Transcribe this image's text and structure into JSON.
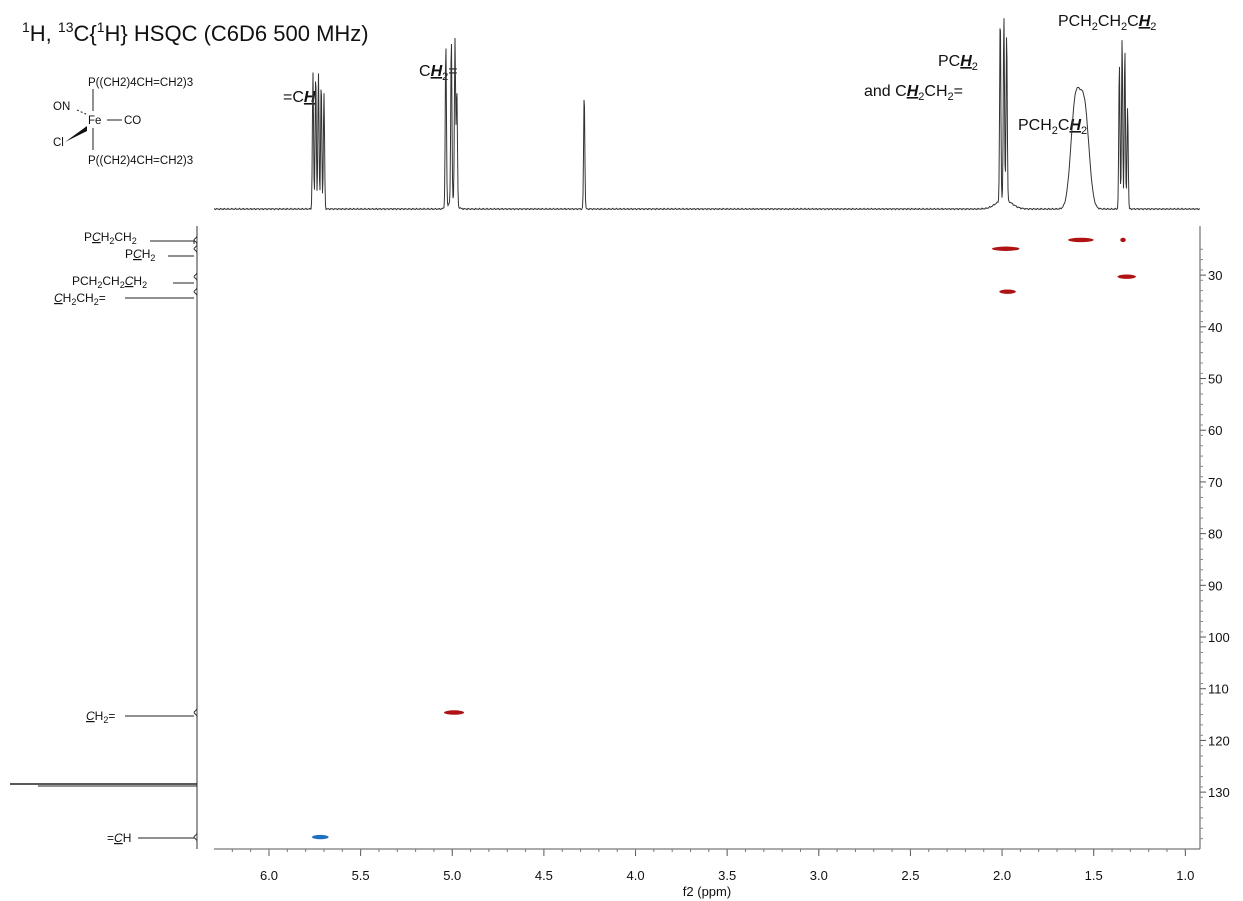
{
  "title": {
    "part1": "H, ",
    "sup1": "1",
    "sup2": "13",
    "sup3": "1",
    "c": "C{",
    "h": "H} HSQC (C6D6 500 MHz)"
  },
  "structure": {
    "top_ligand": "P((CH2)4CH=CH2)3",
    "bottom_ligand": "P((CH2)4CH=CH2)3",
    "no": "ON",
    "fe": "Fe",
    "co": "CO",
    "cl": "Cl"
  },
  "peak_labels": {
    "eq_ch": {
      "pre": "=C",
      "em": "H"
    },
    "ch2_eq": {
      "pre": "C",
      "em": "H",
      "sub": "2",
      "post": "="
    },
    "pch2": {
      "pre": "PC",
      "em": "H",
      "sub": "2"
    },
    "and_ch2ch2": {
      "pre": "and C",
      "em": "H",
      "sub1": "2",
      "mid": "CH",
      "sub2": "2",
      "post": "="
    },
    "pch2ch2": {
      "pre": "PCH",
      "sub1": "2",
      "mid": "C",
      "em": "H",
      "sub2": "2"
    },
    "pch2ch2ch2": {
      "pre": "PCH",
      "sub1": "2",
      "mid1": "CH",
      "sub2": "2",
      "mid2": "C",
      "em": "H",
      "sub3": "2"
    }
  },
  "carbon_labels": {
    "pch2ch2": {
      "p": "P",
      "c": "C",
      "rest": "H",
      "sub": "2",
      "tail": "CH",
      "sub2": "2"
    },
    "pch2": {
      "p": "P",
      "c": "C",
      "rest": "H",
      "sub": "2"
    },
    "pch2ch2ch2": {
      "pre": "PCH",
      "sub1": "2",
      "mid": "CH",
      "sub2": "2",
      "c": "C",
      "rest": "H",
      "sub3": "2"
    },
    "ch2ch2": {
      "c": "C",
      "rest": "H",
      "sub1": "2",
      "mid": "CH",
      "sub2": "2",
      "post": "="
    },
    "ch2_eq": {
      "c": "C",
      "rest": "H",
      "sub": "2",
      "post": "="
    },
    "eq_ch": {
      "pre": "=",
      "c": "C",
      "rest": "H"
    }
  },
  "colors": {
    "positive": "#b01313",
    "negative": "#1f6fc0",
    "trace": "#333333",
    "axis": "#555555"
  },
  "chart_data": {
    "type": "heatmap",
    "subtype": "2D NMR HSQC",
    "xlabel": "f2 (ppm)",
    "ylabel": "",
    "xlim": [
      6.3,
      0.92
    ],
    "ylim": [
      20.5,
      141
    ],
    "x_reversed": true,
    "x_ticks": [
      6.0,
      5.5,
      5.0,
      4.5,
      4.0,
      3.5,
      3.0,
      2.5,
      2.0,
      1.5,
      1.0
    ],
    "x_tick_labels": [
      "6.0",
      "5.5",
      "5.0",
      "4.5",
      "4.0",
      "3.5",
      "3.0",
      "2.5",
      "2.0",
      "1.5",
      "1.0"
    ],
    "y_ticks": [
      30,
      40,
      50,
      60,
      70,
      80,
      90,
      100,
      110,
      120,
      130
    ],
    "y_tick_labels": [
      "30",
      "40",
      "50",
      "60",
      "70",
      "80",
      "90",
      "100",
      "110",
      "120",
      "130"
    ],
    "cross_peaks": [
      {
        "f2": 1.57,
        "f1": 23.2,
        "f2_width": 0.14,
        "sign": "positive"
      },
      {
        "f2": 1.34,
        "f1": 23.2,
        "f2_width": 0.03,
        "sign": "positive"
      },
      {
        "f2": 1.98,
        "f1": 24.9,
        "f2_width": 0.15,
        "sign": "positive"
      },
      {
        "f2": 1.32,
        "f1": 30.3,
        "f2_width": 0.1,
        "sign": "positive"
      },
      {
        "f2": 1.97,
        "f1": 33.2,
        "f2_width": 0.09,
        "sign": "positive"
      },
      {
        "f2": 4.99,
        "f1": 114.6,
        "f2_width": 0.11,
        "sign": "positive"
      },
      {
        "f2": 5.72,
        "f1": 138.7,
        "f2_width": 0.09,
        "sign": "negative"
      }
    ],
    "f1_projection_peaks": [
      23.2,
      24.9,
      30.3,
      33.2,
      114.6,
      128.5,
      138.7
    ],
    "f2_projection_peaks": [
      {
        "ppm": 5.76,
        "height": 0.73
      },
      {
        "ppm": 5.745,
        "height": 0.73
      },
      {
        "ppm": 5.73,
        "height": 0.73
      },
      {
        "ppm": 5.715,
        "height": 0.68
      },
      {
        "ppm": 5.7,
        "height": 0.62
      },
      {
        "ppm": 5.035,
        "height": 0.88
      },
      {
        "ppm": 5.005,
        "height": 0.88
      },
      {
        "ppm": 4.985,
        "height": 0.88
      },
      {
        "ppm": 4.975,
        "height": 0.62
      },
      {
        "ppm": 4.28,
        "height": 0.62
      },
      {
        "ppm": 2.01,
        "height": 1.0
      },
      {
        "ppm": 1.99,
        "height": 1.0
      },
      {
        "ppm": 1.975,
        "height": 0.9
      },
      {
        "ppm": 1.6,
        "height": 0.55
      },
      {
        "ppm": 1.55,
        "height": 0.52
      },
      {
        "ppm": 1.36,
        "height": 0.78
      },
      {
        "ppm": 1.345,
        "height": 0.92
      },
      {
        "ppm": 1.33,
        "height": 0.86
      },
      {
        "ppm": 1.315,
        "height": 0.55
      }
    ]
  }
}
